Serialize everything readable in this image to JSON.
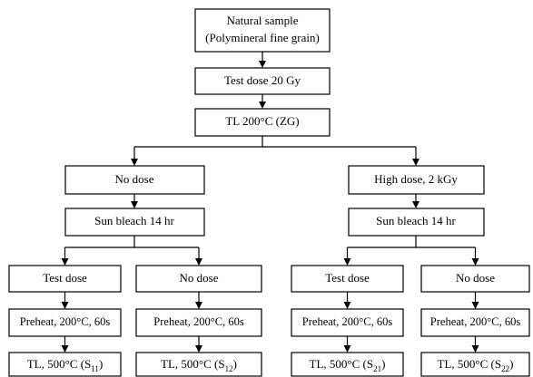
{
  "root": [
    "Natural sample",
    "(Polymineral fine grain)"
  ],
  "steps": [
    "Test dose 20 Gy",
    "TL 200°C (ZG)"
  ],
  "branches": [
    {
      "dose": "No dose",
      "bleach": "Sun bleach 14 hr",
      "subs": [
        {
          "dose": "Test dose",
          "preheat": "Preheat, 200°C, 60s",
          "tl": {
            "text": "TL, 500°C (S",
            "sub": "11",
            "close": ")"
          }
        },
        {
          "dose": "No dose",
          "preheat": "Preheat, 200°C, 60s",
          "tl": {
            "text": "TL, 500°C (S",
            "sub": "12",
            "close": ")"
          }
        }
      ]
    },
    {
      "dose": "High dose, 2 kGy",
      "bleach": "Sun bleach 14 hr",
      "subs": [
        {
          "dose": "Test dose",
          "preheat": "Preheat, 200°C, 60s",
          "tl": {
            "text": "TL, 500°C (S",
            "sub": "21",
            "close": ")"
          }
        },
        {
          "dose": "No dose",
          "preheat": "Preheat, 200°C, 60s",
          "tl": {
            "text": "TL, 500°C (S",
            "sub": "22",
            "close": ")"
          }
        }
      ]
    }
  ]
}
